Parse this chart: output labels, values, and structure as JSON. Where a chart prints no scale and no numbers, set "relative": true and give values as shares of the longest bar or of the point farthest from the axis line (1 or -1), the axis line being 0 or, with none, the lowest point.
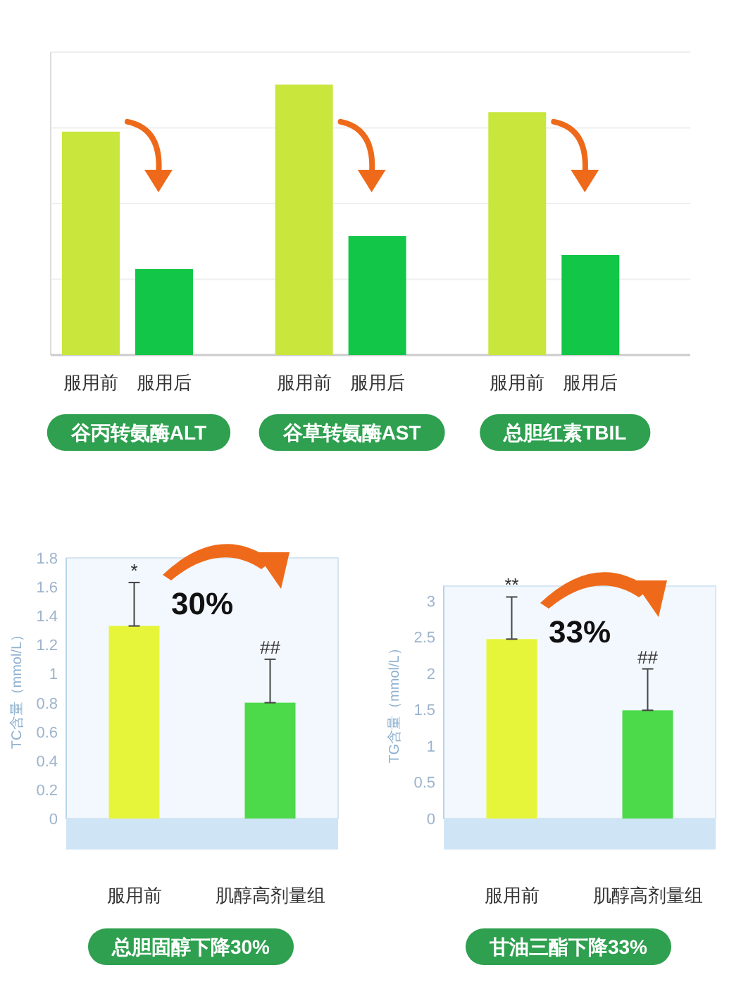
{
  "chart_data": [
    {
      "type": "bar",
      "relative": true,
      "grid": true,
      "categories": [
        "服用前",
        "服用后",
        "服用前",
        "服用后",
        "服用前",
        "服用后"
      ],
      "values": [
        0.826,
        0.318,
        1,
        0.44,
        0.898,
        0.37
      ],
      "colors": [
        "#c9e63c",
        "#12c648",
        "#c9e63c",
        "#12c648",
        "#c9e63c",
        "#12c648"
      ],
      "annotations": [
        "谷丙转氨酶ALT",
        "谷草转氨酶AST",
        "总胆红素TBIL"
      ]
    },
    {
      "type": "bar",
      "ylabel": "TC含量（mmol/L）",
      "categories": [
        "服用前",
        "肌醇高剂量组"
      ],
      "values": [
        1.33,
        0.8
      ],
      "colors": [
        "#e6f53a",
        "#4cd94a"
      ],
      "errors": [
        [
          1.33,
          1.63
        ],
        [
          0.8,
          1.1
        ]
      ],
      "ylim": [
        0,
        1.8
      ],
      "yticks": [
        0,
        0.2,
        0.4,
        0.6,
        0.8,
        1,
        1.2,
        1.4,
        1.6,
        1.8
      ],
      "annotations": [
        {
          "text": "*",
          "x": "服用前",
          "y": 1.63
        },
        {
          "text": "##",
          "x": "肌醇高剂量组",
          "y": 1.1
        },
        "30%",
        "总胆固醇下降30%"
      ]
    },
    {
      "type": "bar",
      "ylabel": "TG含量（mmol/L）",
      "categories": [
        "服用前",
        "肌醇高剂量组"
      ],
      "values": [
        2.47,
        1.49
      ],
      "colors": [
        "#e6f53a",
        "#4cd94a"
      ],
      "errors": [
        [
          2.47,
          3.05
        ],
        [
          1.49,
          2.06
        ]
      ],
      "ylim": [
        0,
        3.2
      ],
      "yticks": [
        0,
        0.5,
        1,
        1.5,
        2,
        2.5,
        3
      ],
      "annotations": [
        {
          "text": "**",
          "x": "服用前",
          "y": 3.05
        },
        {
          "text": "##",
          "x": "肌醇高剂量组",
          "y": 2.06
        },
        "33%",
        "甘油三酯下降33%"
      ]
    }
  ]
}
